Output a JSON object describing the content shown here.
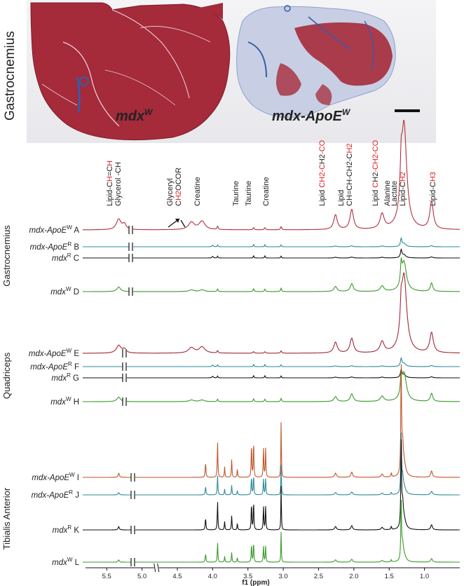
{
  "histology": {
    "muscle_label": "Gastrocnemius",
    "left_label": "mdx",
    "left_sup": "W",
    "right_label": "mdx-ApoE",
    "right_sup": "W",
    "colors": {
      "muscle": "#a52a3a",
      "collagen": "#3a5ba8",
      "background": "#f2f2f4"
    }
  },
  "peaks": [
    {
      "lines": [
        [
          "Lipid-C",
          "H",
          "=C",
          "H"
        ],
        [
          "Glycerol -CH"
        ]
      ],
      "ppm": 5.3
    },
    {
      "lines": [
        [
          "Glyceryl"
        ],
        [
          "C",
          "H2",
          "OCOR"
        ]
      ],
      "ppm": 4.25
    },
    {
      "lines": [
        [
          "Creatine"
        ]
      ],
      "ppm": 3.93
    },
    {
      "lines": [
        [
          "Taurine"
        ]
      ],
      "ppm": 3.42
    },
    {
      "lines": [
        [
          "Taurine"
        ]
      ],
      "ppm": 3.26
    },
    {
      "lines": [
        [
          "Creatine"
        ]
      ],
      "ppm": 3.03
    },
    {
      "lines": [
        [
          "Lipid",
          " CH2-C",
          "H2",
          "-CO"
        ]
      ],
      "ppm": 2.26
    },
    {
      "lines": [
        [
          "Lipid"
        ],
        [
          "CH=CH-CH2-C",
          "H2"
        ]
      ],
      "ppm": 2.03
    },
    {
      "lines": [
        [
          "Lipid",
          " C",
          "H2",
          "-CH2-CO"
        ]
      ],
      "ppm": 1.6
    },
    {
      "lines": [
        [
          "Alanine"
        ]
      ],
      "ppm": 1.47
    },
    {
      "lines": [
        [
          "Lactate"
        ]
      ],
      "ppm": 1.33
    },
    {
      "lines": [
        [
          "Lipid-C",
          "H2"
        ]
      ],
      "ppm": 1.3
    },
    {
      "lines": [
        [
          "Lipid-C",
          "H3"
        ]
      ],
      "ppm": 0.9
    }
  ],
  "groups": [
    {
      "muscle": "Gastrocnemius",
      "spectra": [
        {
          "label": "mdx-ApoE",
          "sup": "W",
          "letter": "A",
          "color": "#b03040",
          "style": "lipid_big"
        },
        {
          "label": "mdx-ApoE",
          "sup": "R",
          "letter": "B",
          "color": "#2e8a9a",
          "style": "flat"
        },
        {
          "label": "mdx",
          "sup": "R",
          "letter": "C",
          "color": "#111111",
          "style": "flat"
        },
        {
          "label": "mdx",
          "sup": "W",
          "letter": "D",
          "color": "#3a9a2a",
          "style": "lipid_mid"
        }
      ]
    },
    {
      "muscle": "Quadriceps",
      "spectra": [
        {
          "label": "mdx-ApoE",
          "sup": "W",
          "letter": "E",
          "color": "#a0283a",
          "style": "lipid_big"
        },
        {
          "label": "mdx-ApoE",
          "sup": "R",
          "letter": "F",
          "color": "#2e8a9a",
          "style": "flat"
        },
        {
          "label": "mdx",
          "sup": "R",
          "letter": "G",
          "color": "#111111",
          "style": "flat"
        },
        {
          "label": "mdx",
          "sup": "W",
          "letter": "H",
          "color": "#3a9a2a",
          "style": "lipid_mid"
        }
      ]
    },
    {
      "muscle": "Tibialis Anterior",
      "spectra": [
        {
          "label": "mdx-ApoE",
          "sup": "W",
          "letter": "I",
          "color": "#c0552a",
          "style": "meta"
        },
        {
          "label": "mdx-ApoE",
          "sup": "R",
          "letter": "J",
          "color": "#2e8a9a",
          "style": "meta"
        },
        {
          "label": "mdx",
          "sup": "R",
          "letter": "K",
          "color": "#111111",
          "style": "meta"
        },
        {
          "label": "mdx",
          "sup": "W",
          "letter": "L",
          "color": "#3a9a2a",
          "style": "meta"
        }
      ]
    }
  ],
  "axis": {
    "xlabel": "f1 (ppm)",
    "ticks": [
      "5.5",
      "5.0",
      "4.5",
      "4.0",
      "3.5",
      "3.0",
      "2.5",
      "2.0",
      "1.5",
      "1.0"
    ],
    "tick_values": [
      5.5,
      5.0,
      4.5,
      4.0,
      3.5,
      3.0,
      2.5,
      2.0,
      1.5,
      1.0
    ],
    "xlim": [
      5.8,
      0.5
    ],
    "axis_break_ppm": 4.8
  },
  "accent_red": "#e02020"
}
